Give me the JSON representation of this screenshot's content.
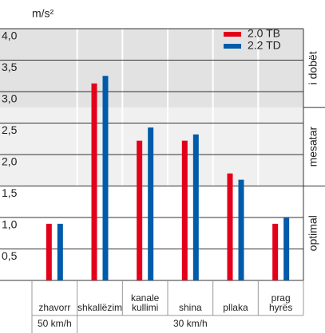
{
  "chart_data": {
    "type": "bar",
    "y_label": "m/s²",
    "categories": [
      "zhavorr",
      "shkallëzim",
      "kanale kullimi",
      "shina",
      "pllaka",
      "prag hyrës"
    ],
    "series": [
      {
        "name": "2.0 TB",
        "color": "#e3001b",
        "values": [
          0.9,
          3.13,
          2.22,
          2.22,
          1.7,
          0.9
        ]
      },
      {
        "name": "2.2 TD",
        "color": "#005baa",
        "values": [
          0.9,
          3.25,
          2.43,
          2.32,
          1.6,
          1.0
        ]
      }
    ],
    "ylim": [
      0,
      4
    ],
    "yticks": [
      {
        "value": 0.5,
        "label": "0,5"
      },
      {
        "value": 1,
        "label": "1,0"
      },
      {
        "value": 1.5,
        "label": "1,5"
      },
      {
        "value": 2,
        "label": "2,0"
      },
      {
        "value": 2.5,
        "label": "2,5"
      },
      {
        "value": 3,
        "label": "3,0"
      },
      {
        "value": 3.5,
        "label": "3,5"
      },
      {
        "value": 4,
        "label": "4,0"
      }
    ],
    "zones": [
      {
        "label": "optimal",
        "from": 0,
        "to": 1.5,
        "color": "#ffffff"
      },
      {
        "label": "mesatar",
        "from": 1.5,
        "to": 2.75,
        "color": "#f0f0f0"
      },
      {
        "label": "i dobët",
        "from": 2.75,
        "to": 4,
        "color": "#e2e2e2"
      }
    ],
    "speed_groups": [
      {
        "label": "50 km/h",
        "span": 1
      },
      {
        "label": "30 km/h",
        "span": 5
      }
    ],
    "legend": "top-right"
  }
}
